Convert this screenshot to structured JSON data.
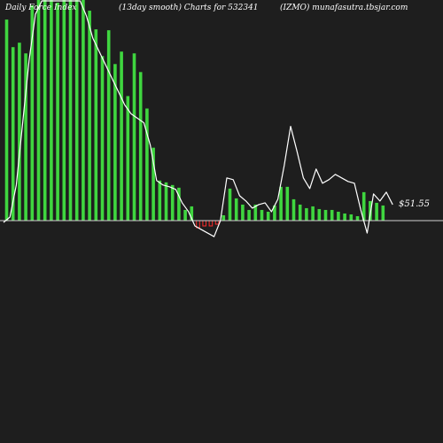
{
  "header": {
    "left": "Daily Force Index",
    "mid": "(13day smooth) Charts for 532341",
    "right": "(IZMO) munafasutra.tbsjar.com"
  },
  "colors": {
    "background": "#1e1e1e",
    "positive_bar": "#3fd63f",
    "negative_bar": "#ff2a2a",
    "line": "#ffffff",
    "zero_line": "#d0d0d0"
  },
  "chart_data": {
    "type": "bar",
    "title": "",
    "xlabel": "",
    "ylabel": "",
    "ylim": [
      -30,
      248
    ],
    "zero_label": "$51.55",
    "series": [
      {
        "kind": "bar",
        "values": [
          226,
          195,
          200,
          188,
          242,
          248,
          248,
          248,
          245,
          248,
          248,
          248,
          248,
          236,
          215,
          185,
          214,
          176,
          190,
          140,
          188,
          167,
          126,
          82,
          45,
          43,
          40,
          37,
          12,
          16,
          -8,
          -6,
          -6,
          -4,
          6,
          36,
          25,
          18,
          12,
          18,
          12,
          10,
          17,
          38,
          38,
          24,
          18,
          14,
          16,
          13,
          12,
          12,
          10,
          8,
          7,
          5,
          32,
          22,
          20,
          17
        ]
      },
      {
        "kind": "line",
        "values": [
          -2,
          4,
          40,
          110,
          180,
          232,
          248,
          248,
          248,
          248,
          248,
          248,
          248,
          230,
          205,
          190,
          175,
          160,
          145,
          130,
          120,
          115,
          110,
          85,
          45,
          40,
          38,
          35,
          20,
          10,
          -6,
          -10,
          -14,
          -18,
          0,
          48,
          46,
          28,
          22,
          14,
          18,
          20,
          10,
          24,
          62,
          106,
          78,
          48,
          36,
          58,
          42,
          46,
          52,
          48,
          44,
          42,
          12,
          -14,
          30,
          22,
          32,
          18
        ]
      }
    ]
  }
}
